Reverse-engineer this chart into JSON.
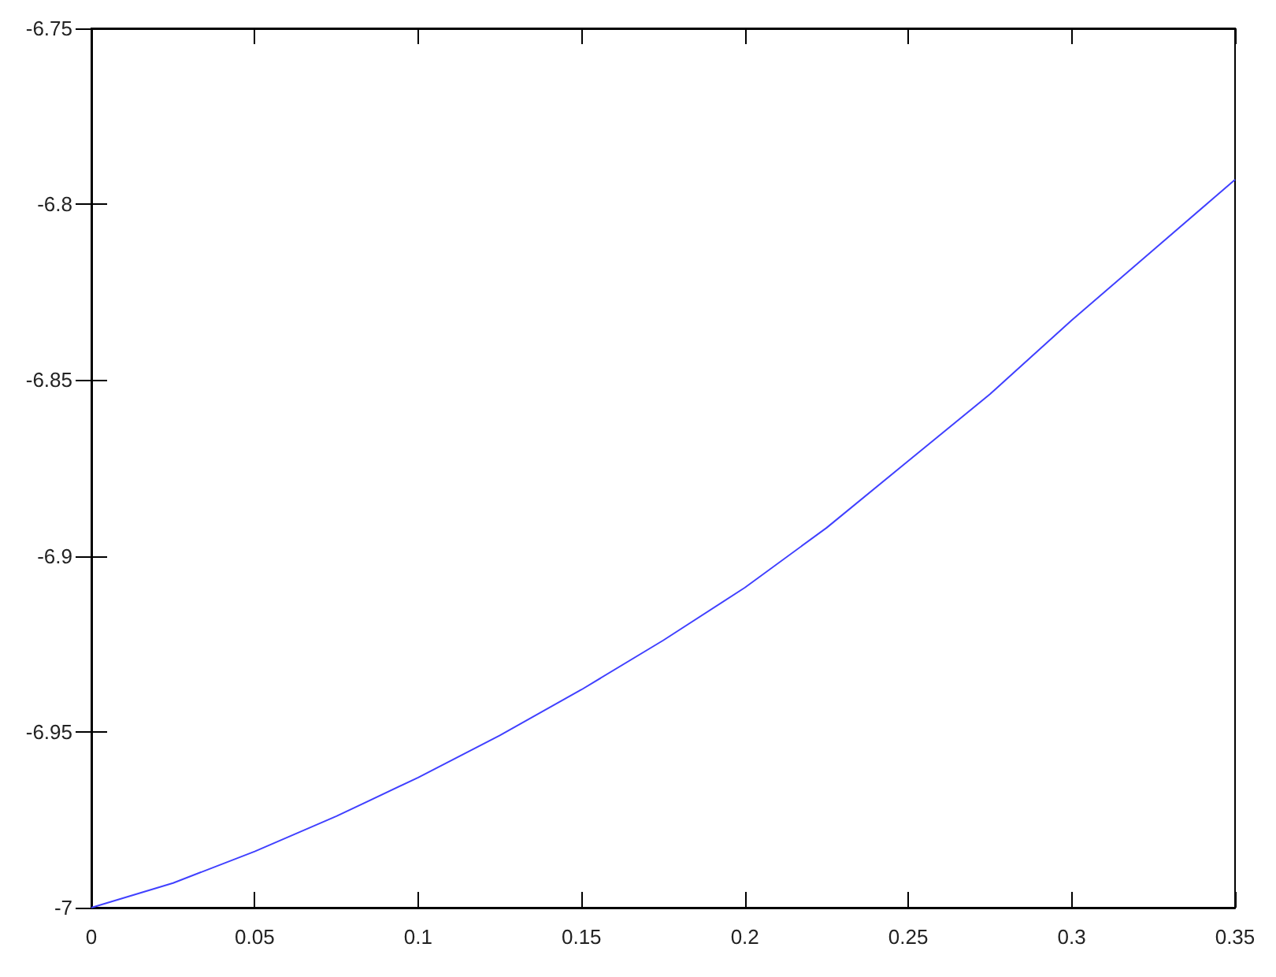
{
  "chart_data": {
    "type": "line",
    "x": [
      0,
      0.025,
      0.05,
      0.075,
      0.1,
      0.125,
      0.15,
      0.175,
      0.2,
      0.225,
      0.25,
      0.275,
      0.3,
      0.325,
      0.35
    ],
    "series": [
      {
        "color": "#4040ff",
        "values": [
          -7,
          -6.993,
          -6.984,
          -6.974,
          -6.963,
          -6.951,
          -6.938,
          -6.924,
          -6.909,
          -6.892,
          -6.873,
          -6.854,
          -6.833,
          -6.813,
          -6.793
        ]
      }
    ],
    "xlim": [
      0,
      0.35
    ],
    "xticks": [
      0,
      0.05,
      0.1,
      0.15,
      0.2,
      0.25,
      0.3,
      0.35
    ],
    "ylim": [
      -7,
      -6.75
    ],
    "yticks": [
      -7,
      -6.95,
      -6.9,
      -6.85,
      -6.8,
      -6.75
    ],
    "grid": false,
    "marker": "none",
    "line_style": "solid"
  }
}
